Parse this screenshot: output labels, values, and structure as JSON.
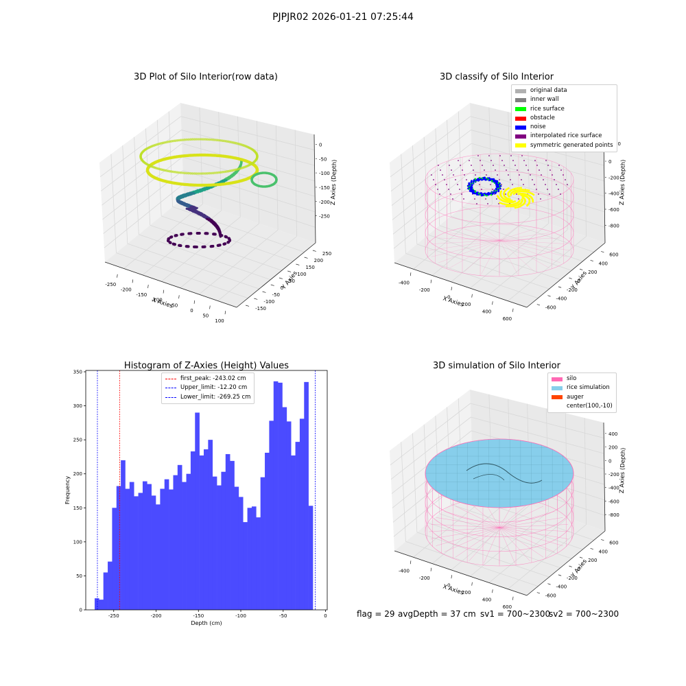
{
  "figure_title": "PJPJR02 2026-01-21 07:25:44",
  "footer": {
    "flag": "flag = 29",
    "avg_depth": "avgDepth = 37 cm",
    "sv1": "sv1 = 700~2300",
    "sv2": "sv2 = 700~2300"
  },
  "colors": {
    "histogram_bar": "#4b4bff",
    "first_peak_line": "#ff0000",
    "limit_lines": "#0000ff",
    "silo": "#ff69b4",
    "rice_simulation": "#87ceeb",
    "auger": "#ff4500",
    "original_data": "#b0b0b0",
    "inner_wall": "#808080",
    "rice_surface": "#00ff00",
    "obstacle": "#ff0000",
    "noise": "#0000ff",
    "interpolated_rice_surface": "#800080",
    "symmetric_generated_points": "#ffff00"
  },
  "chart_data": [
    {
      "type": "scatter",
      "projection": "3d",
      "title": "3D Plot of Silo Interior(row data)",
      "xlabel": "X Axies",
      "ylabel": "Y Axies",
      "zlabel": "Z Axies (Depth)",
      "xticks": [
        -250,
        -200,
        -150,
        -100,
        -50,
        0,
        50,
        100
      ],
      "yticks": [
        -150,
        -100,
        -50,
        0,
        50,
        100,
        150,
        200,
        250
      ],
      "zticks": [
        0,
        -50,
        -100,
        -150,
        -200,
        -250
      ],
      "colormap": "viridis"
    },
    {
      "type": "scatter",
      "projection": "3d",
      "title": "3D classify of Silo Interior",
      "xticks": [
        -400,
        -200,
        0,
        200,
        400,
        600
      ],
      "yticks": [
        -600,
        -400,
        -200,
        0,
        200,
        400,
        600
      ],
      "zticks": [
        200,
        0,
        -200,
        -400,
        -600,
        -800
      ],
      "xlabel": "X Axies",
      "ylabel": "Y Axies",
      "zlabel": "Z Axies (Depth)",
      "legend": [
        "original data",
        "inner wall",
        "rice surface",
        "obstacle",
        "noise",
        "interpolated rice surface",
        "symmetric generated points"
      ],
      "legend_position": "top-right",
      "ztick_partial_top": "00"
    },
    {
      "type": "bar",
      "title": "Histogram of Z-Axies (Height) Values",
      "xlabel": "Depth (cm)",
      "ylabel": "Frequency",
      "xlim": [
        -283,
        2
      ],
      "ylim": [
        0,
        352
      ],
      "xticks": [
        -250,
        -200,
        -150,
        -100,
        -50,
        0
      ],
      "yticks": [
        0,
        50,
        100,
        150,
        200,
        250,
        300,
        350
      ],
      "bin_start": -272.5,
      "bin_width": 5.15,
      "values": [
        17,
        15,
        55,
        71,
        150,
        182,
        220,
        178,
        188,
        167,
        172,
        189,
        185,
        168,
        155,
        178,
        192,
        177,
        198,
        213,
        188,
        200,
        233,
        290,
        227,
        236,
        250,
        196,
        183,
        203,
        229,
        219,
        181,
        166,
        129,
        150,
        152,
        136,
        195,
        231,
        278,
        336,
        334,
        298,
        277,
        227,
        247,
        281,
        335,
        153
      ],
      "reference_lines": [
        {
          "name": "first_peak: -243.02 cm",
          "x": -243.02,
          "style": "dashed",
          "color": "red"
        },
        {
          "name": "Upper_limit: -12.20 cm",
          "x": -12.2,
          "style": "dashed",
          "color": "blue"
        },
        {
          "name": "Lower_limit: -269.25 cm",
          "x": -269.25,
          "style": "dashed",
          "color": "blue"
        }
      ],
      "legend_position": "top-center"
    },
    {
      "type": "area",
      "projection": "3d",
      "title": "3D simulation of Silo Interior",
      "xticks": [
        -400,
        -200,
        0,
        200,
        400,
        600
      ],
      "yticks": [
        -600,
        -400,
        -200,
        0,
        200,
        400,
        600
      ],
      "zticks": [
        400,
        200,
        0,
        -200,
        -400,
        -600,
        -800
      ],
      "xlabel": "X Axies",
      "ylabel": "Y Axies",
      "zlabel": "Z Axies (Depth)",
      "legend": [
        "silo",
        "rice simulation",
        "auger",
        "center(100,-10)"
      ],
      "legend_position": "top-right"
    }
  ]
}
